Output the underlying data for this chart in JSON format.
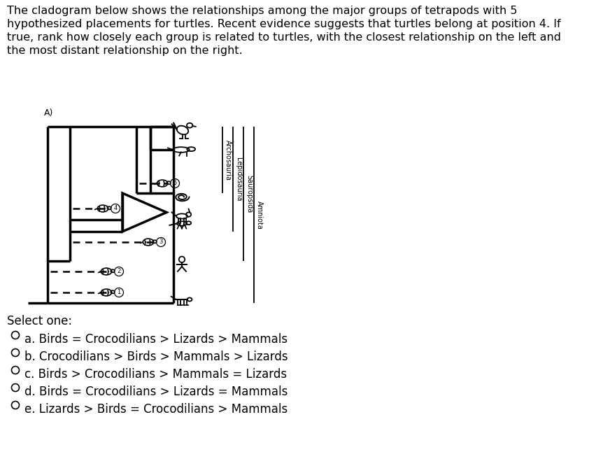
{
  "title_lines": [
    "The cladogram below shows the relationships among the major groups of tetrapods with 5",
    "hypothesized placements for turtles. Recent evidence suggests that turtles belong at position 4. If",
    "true, rank how closely each group is related to turtles, with the closest relationship on the left and",
    "the most distant relationship on the right."
  ],
  "select_label": "Select one:",
  "options": [
    "a. Birds = Crocodilians > Lizards > Mammals",
    "b. Crocodilians > Birds > Mammals > Lizards",
    "c. Birds > Crocodilians > Mammals = Lizards",
    "d. Birds = Crocodilians > Lizards = Mammals",
    "e. Lizards > Birds = Crocodilians > Mammals"
  ],
  "clade_labels": [
    "Archosauria",
    "Lepidosauria",
    "Sauropsida",
    "Amniota"
  ],
  "diagram_label": "A)",
  "lw_main": 2.5,
  "lw_dash": 1.8,
  "lw_bracket": 1.3,
  "title_fontsize": 11.5,
  "option_fontsize": 12,
  "select_fontsize": 12,
  "clade_fontsize": 7,
  "diag_label_fontsize": 9,
  "bg": "#ffffff"
}
